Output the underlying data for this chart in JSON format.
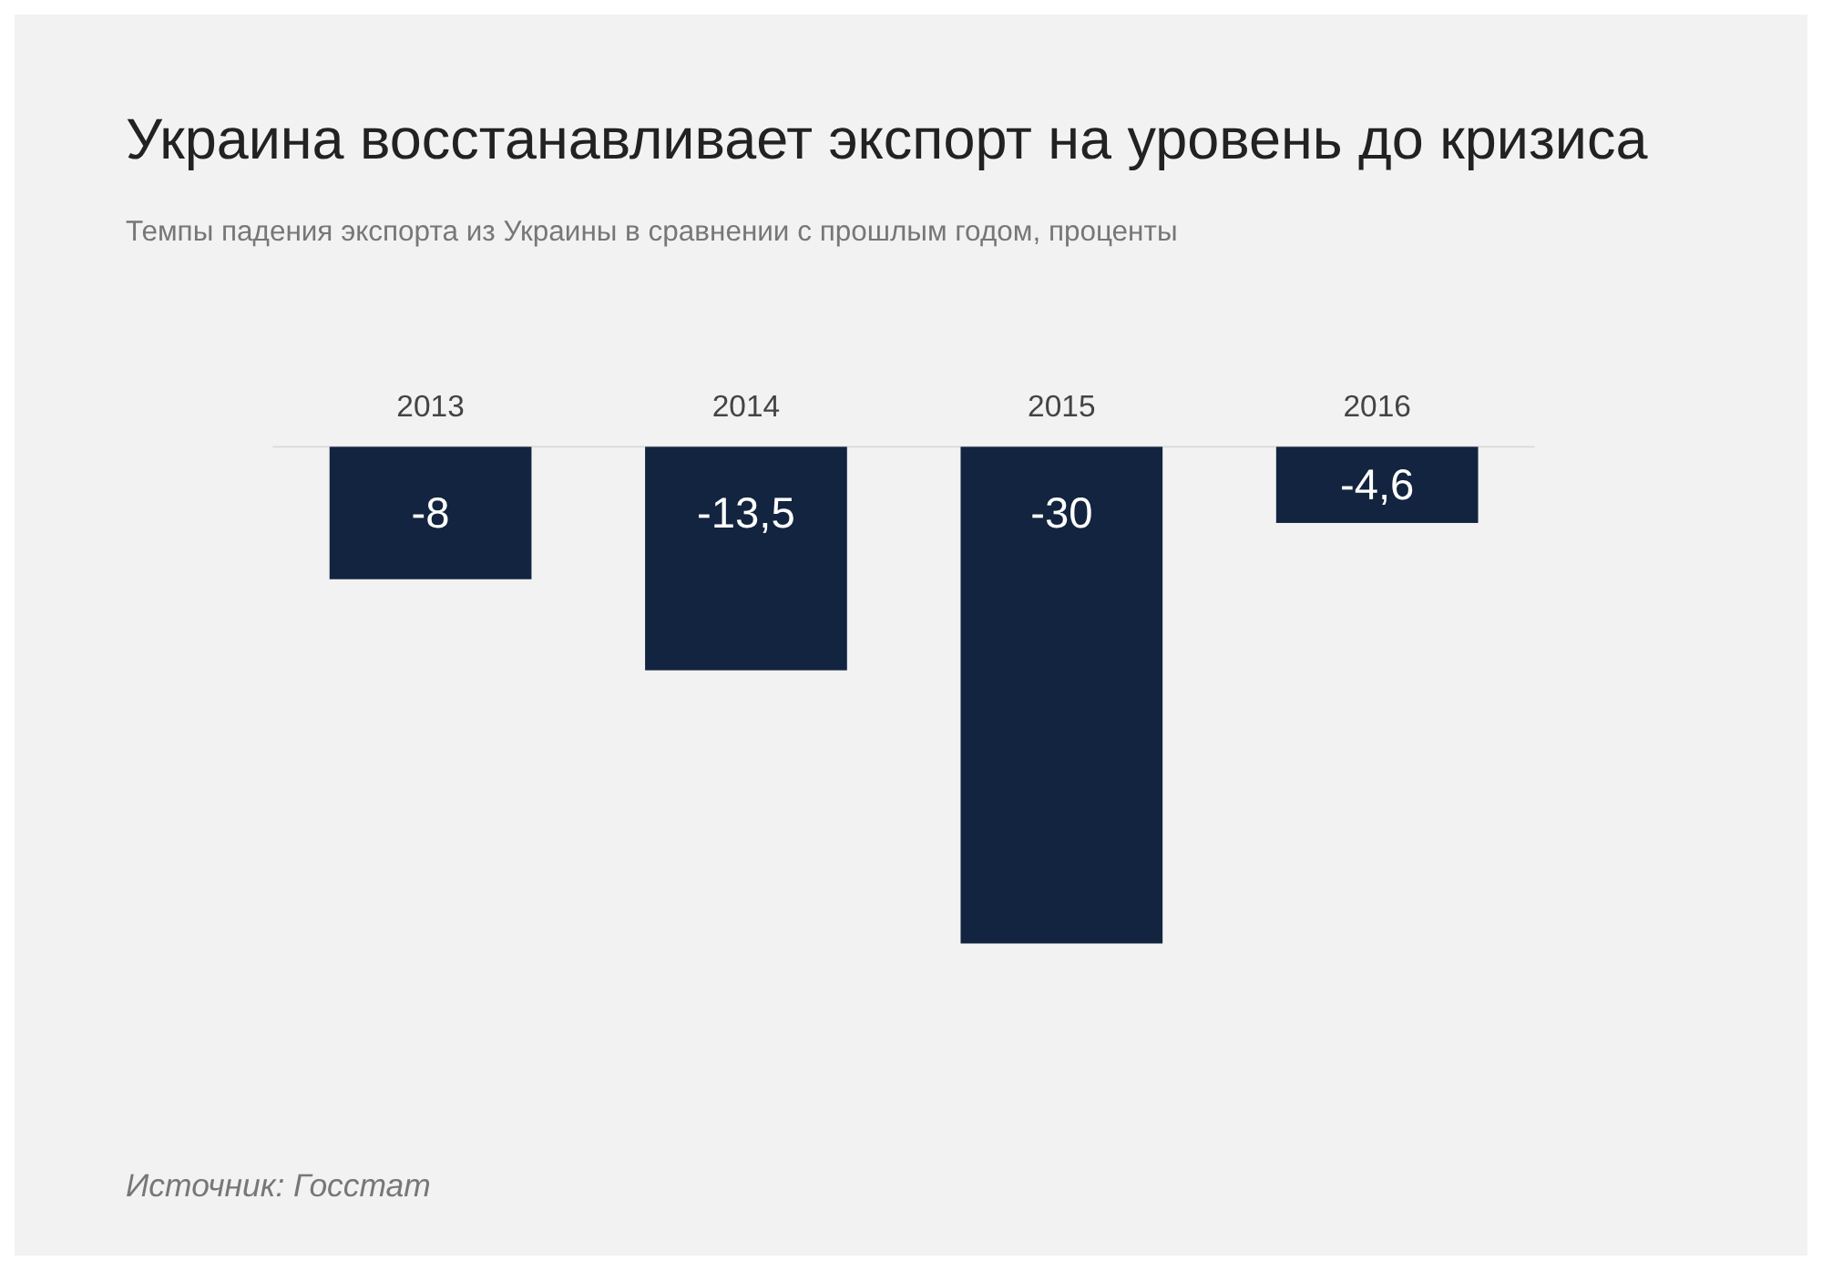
{
  "chart_data": {
    "type": "bar",
    "title": "Украина восстанавливает экспорт на уровень до кризиса",
    "subtitle": "Темпы падения экспорта из Украины в сравнении с прошлым годом, проценты",
    "categories": [
      "2013",
      "2014",
      "2015",
      "2016"
    ],
    "values": [
      -8,
      -13.5,
      -30,
      -4.6
    ],
    "value_labels": [
      "-8",
      "-13,5",
      "-30",
      "-4,6"
    ],
    "color": "#12243f",
    "annotations": [
      "Источник: Госстат"
    ]
  }
}
